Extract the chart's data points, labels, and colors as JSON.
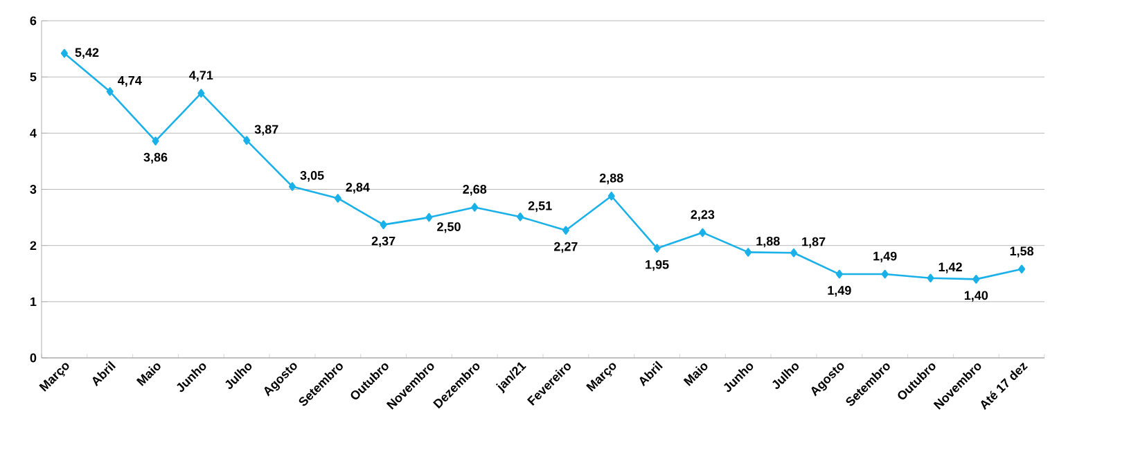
{
  "chart_data": {
    "type": "line",
    "categories": [
      "Março",
      "Abril",
      "Maio",
      "Junho",
      "Julho",
      "Agosto",
      "Setembro",
      "Outubro",
      "Novembro",
      "Dezembro",
      "jan/21",
      "Fevereiro",
      "Março",
      "Abril",
      "Maio",
      "Junho",
      "Julho",
      "Agosto",
      "Setembro",
      "Outubro",
      "Novembro",
      "Até 17 dez"
    ],
    "values": [
      5.42,
      4.74,
      3.86,
      4.71,
      3.87,
      3.05,
      2.84,
      2.37,
      2.5,
      2.68,
      2.51,
      2.27,
      2.88,
      1.95,
      2.23,
      1.88,
      1.87,
      1.49,
      1.49,
      1.42,
      1.4,
      1.58
    ],
    "value_labels": [
      "5,42",
      "4,74",
      "3,86",
      "4,71",
      "3,87",
      "3,05",
      "2,84",
      "2,37",
      "2,50",
      "2,68",
      "2,51",
      "2,27",
      "2,88",
      "1,95",
      "2,23",
      "1,88",
      "1,87",
      "1,49",
      "1,49",
      "1,42",
      "1,40",
      "1,58"
    ],
    "color": "#1ab0e8",
    "marker": "diamond",
    "line_style": "solid",
    "ylim": [
      0,
      6
    ],
    "yticks": [
      0,
      1,
      2,
      3,
      4,
      5,
      6
    ],
    "grid": "y"
  }
}
